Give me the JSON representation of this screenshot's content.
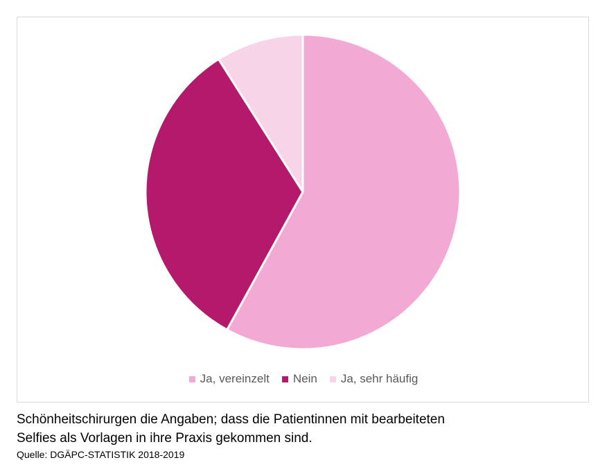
{
  "chart_data": {
    "type": "pie",
    "title": "",
    "series": [
      {
        "name": "",
        "values": [
          58,
          33,
          9
        ]
      }
    ],
    "categories": [
      "Ja, vereinzelt",
      "Nein",
      "Ja, sehr häufig"
    ],
    "colors": [
      "#f2a9d3",
      "#b5196b",
      "#f8d4e8"
    ],
    "legend_position": "bottom",
    "start_angle": "12 o'clock, clockwise"
  },
  "caption": {
    "line1": "Schönheitschirurgen die Angaben; dass die Patientinnen mit bearbeiteten",
    "line2": "Selfies als Vorlagen in ihre Praxis gekommen sind.",
    "source": "Quelle: DGÄPC-STATISTIK 2018-2019"
  }
}
